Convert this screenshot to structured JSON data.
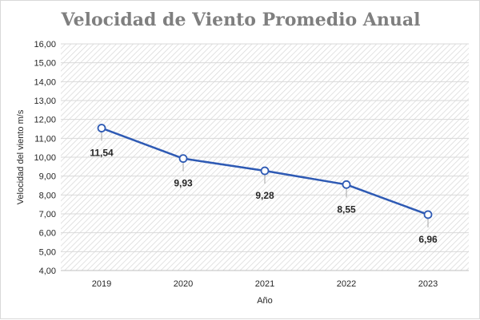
{
  "chart_data": {
    "type": "line",
    "title": "Velocidad de Viento  Promedio Anual",
    "xlabel": "Año",
    "ylabel": "Velocidad del viento m/s",
    "categories": [
      "2019",
      "2020",
      "2021",
      "2022",
      "2023"
    ],
    "series": [
      {
        "values": [
          11.54,
          9.93,
          9.28,
          8.55,
          6.96
        ],
        "labels": [
          "11,54",
          "9,93",
          "9,28",
          "8,55",
          "6,96"
        ],
        "color": "#2e5ab4",
        "marker": "hollow-circle"
      }
    ],
    "ylim": [
      4,
      16
    ],
    "yticks": [
      "4,00",
      "5,00",
      "6,00",
      "7,00",
      "8,00",
      "9,00",
      "10,00",
      "11,00",
      "12,00",
      "13,00",
      "14,00",
      "15,00",
      "16,00"
    ],
    "grid": true,
    "plot_background": "diagonal-hatch",
    "legend": "none"
  }
}
